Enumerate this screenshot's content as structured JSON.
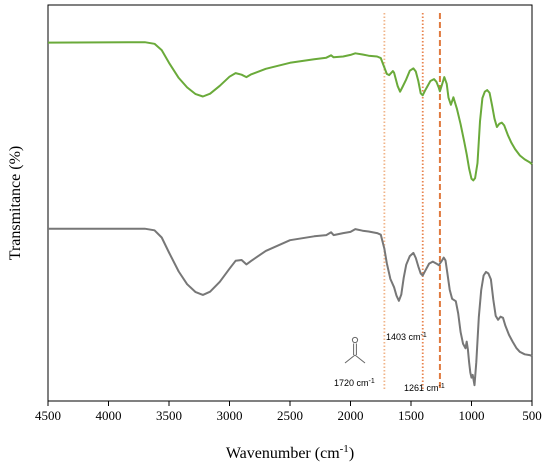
{
  "chart_data": {
    "type": "line",
    "xlabel": "Wavenumber (cm",
    "xlabel_sup": "-1",
    "xlabel_suffix": ")",
    "ylabel": "Transmitance (%)",
    "xlim": [
      4500,
      500
    ],
    "x_reversed": true,
    "ylim": [
      0,
      100
    ],
    "y_ticks_shown": false,
    "grid": false,
    "legend": "none",
    "x_ticks": [
      4500,
      4000,
      3500,
      3000,
      2500,
      2000,
      1500,
      1000,
      500
    ],
    "series": [
      {
        "color": "#6aaa3a",
        "points": [
          [
            4500,
            90.5
          ],
          [
            3700,
            90.6
          ],
          [
            3620,
            90.2
          ],
          [
            3560,
            88.6
          ],
          [
            3500,
            85.4
          ],
          [
            3420,
            81.6
          ],
          [
            3350,
            79.2
          ],
          [
            3280,
            77.5
          ],
          [
            3220,
            76.9
          ],
          [
            3160,
            77.6
          ],
          [
            3080,
            79.6
          ],
          [
            3000,
            81.9
          ],
          [
            2950,
            82.8
          ],
          [
            2900,
            82.4
          ],
          [
            2860,
            81.8
          ],
          [
            2820,
            82.5
          ],
          [
            2700,
            83.9
          ],
          [
            2500,
            85.4
          ],
          [
            2300,
            86.3
          ],
          [
            2200,
            86.7
          ],
          [
            2160,
            87.3
          ],
          [
            2140,
            86.8
          ],
          [
            2060,
            87.0
          ],
          [
            2000,
            87.4
          ],
          [
            1960,
            87.8
          ],
          [
            1900,
            87.5
          ],
          [
            1850,
            87.2
          ],
          [
            1780,
            87.0
          ],
          [
            1750,
            86.6
          ],
          [
            1720,
            84.2
          ],
          [
            1700,
            82.6
          ],
          [
            1680,
            82.3
          ],
          [
            1650,
            83.3
          ],
          [
            1640,
            82.9
          ],
          [
            1610,
            79.5
          ],
          [
            1590,
            78.1
          ],
          [
            1570,
            79.3
          ],
          [
            1540,
            81.2
          ],
          [
            1510,
            83.4
          ],
          [
            1480,
            84.0
          ],
          [
            1460,
            83.2
          ],
          [
            1440,
            80.8
          ],
          [
            1420,
            77.7
          ],
          [
            1403,
            77.2
          ],
          [
            1380,
            78.6
          ],
          [
            1340,
            80.8
          ],
          [
            1310,
            81.3
          ],
          [
            1290,
            80.6
          ],
          [
            1270,
            79.1
          ],
          [
            1261,
            78.2
          ],
          [
            1245,
            79.8
          ],
          [
            1225,
            81.8
          ],
          [
            1205,
            80.1
          ],
          [
            1190,
            76.6
          ],
          [
            1170,
            74.8
          ],
          [
            1150,
            76.7
          ],
          [
            1120,
            73.7
          ],
          [
            1090,
            69.9
          ],
          [
            1060,
            65.5
          ],
          [
            1040,
            62.3
          ],
          [
            1020,
            58.7
          ],
          [
            1000,
            56.1
          ],
          [
            985,
            55.7
          ],
          [
            970,
            56.3
          ],
          [
            950,
            60.1
          ],
          [
            930,
            70.6
          ],
          [
            910,
            76.5
          ],
          [
            890,
            78.1
          ],
          [
            870,
            78.5
          ],
          [
            850,
            77.8
          ],
          [
            830,
            74.6
          ],
          [
            810,
            71.3
          ],
          [
            790,
            69.2
          ],
          [
            770,
            70.0
          ],
          [
            750,
            70.3
          ],
          [
            730,
            69.6
          ],
          [
            700,
            67.2
          ],
          [
            670,
            65.2
          ],
          [
            640,
            63.6
          ],
          [
            600,
            62.0
          ],
          [
            560,
            61.0
          ],
          [
            520,
            60.3
          ],
          [
            500,
            59.8
          ]
        ]
      },
      {
        "color": "#777777",
        "points": [
          [
            4500,
            43.5
          ],
          [
            3700,
            43.5
          ],
          [
            3620,
            43.1
          ],
          [
            3560,
            41.3
          ],
          [
            3500,
            37.5
          ],
          [
            3420,
            32.7
          ],
          [
            3350,
            29.5
          ],
          [
            3280,
            27.5
          ],
          [
            3220,
            26.8
          ],
          [
            3160,
            27.6
          ],
          [
            3080,
            30.1
          ],
          [
            3000,
            33.4
          ],
          [
            2950,
            35.4
          ],
          [
            2900,
            35.6
          ],
          [
            2860,
            34.5
          ],
          [
            2820,
            35.4
          ],
          [
            2700,
            37.9
          ],
          [
            2500,
            40.6
          ],
          [
            2300,
            41.6
          ],
          [
            2200,
            41.9
          ],
          [
            2160,
            42.6
          ],
          [
            2140,
            41.9
          ],
          [
            2060,
            42.4
          ],
          [
            2000,
            42.7
          ],
          [
            1960,
            43.4
          ],
          [
            1900,
            43.0
          ],
          [
            1850,
            42.8
          ],
          [
            1780,
            42.4
          ],
          [
            1750,
            42.0
          ],
          [
            1720,
            38.4
          ],
          [
            1700,
            34.8
          ],
          [
            1670,
            30.8
          ],
          [
            1640,
            28.7
          ],
          [
            1620,
            26.6
          ],
          [
            1600,
            25.3
          ],
          [
            1580,
            26.9
          ],
          [
            1560,
            31.1
          ],
          [
            1540,
            34.4
          ],
          [
            1510,
            36.6
          ],
          [
            1480,
            37.4
          ],
          [
            1460,
            36.1
          ],
          [
            1440,
            34.0
          ],
          [
            1420,
            32.2
          ],
          [
            1403,
            31.7
          ],
          [
            1380,
            33.0
          ],
          [
            1350,
            34.7
          ],
          [
            1320,
            35.2
          ],
          [
            1290,
            34.7
          ],
          [
            1270,
            34.3
          ],
          [
            1250,
            35.2
          ],
          [
            1230,
            36.2
          ],
          [
            1215,
            35.5
          ],
          [
            1200,
            32.4
          ],
          [
            1180,
            28.1
          ],
          [
            1160,
            25.8
          ],
          [
            1130,
            25.2
          ],
          [
            1110,
            22.1
          ],
          [
            1090,
            17.4
          ],
          [
            1070,
            14.5
          ],
          [
            1050,
            13.3
          ],
          [
            1040,
            15.0
          ],
          [
            1030,
            13.0
          ],
          [
            1020,
            9.8
          ],
          [
            1010,
            7.2
          ],
          [
            1000,
            5.9
          ],
          [
            990,
            6.6
          ],
          [
            975,
            4.0
          ],
          [
            960,
            9.8
          ],
          [
            940,
            21.1
          ],
          [
            920,
            28.0
          ],
          [
            900,
            31.7
          ],
          [
            880,
            32.6
          ],
          [
            860,
            32.2
          ],
          [
            840,
            30.7
          ],
          [
            820,
            25.6
          ],
          [
            800,
            21.5
          ],
          [
            780,
            20.5
          ],
          [
            760,
            21.3
          ],
          [
            740,
            21.0
          ],
          [
            720,
            19.0
          ],
          [
            690,
            16.7
          ],
          [
            660,
            15.0
          ],
          [
            630,
            13.4
          ],
          [
            600,
            12.4
          ],
          [
            560,
            11.8
          ],
          [
            520,
            11.6
          ],
          [
            500,
            11.4
          ]
        ]
      }
    ],
    "marker_lines": [
      {
        "x": 1720,
        "color": "#f0b48a",
        "style": "dotted"
      },
      {
        "x": 1403,
        "color": "#e8844f",
        "style": "dotted"
      },
      {
        "x": 1261,
        "color": "#e07a3f",
        "style": "dashed"
      }
    ],
    "annotations": [
      {
        "text": "1720 cm",
        "sup": "-1"
      },
      {
        "text": "1403 cm",
        "sup": "-1"
      },
      {
        "text": "1261 cm",
        "sup": "-1"
      }
    ]
  }
}
